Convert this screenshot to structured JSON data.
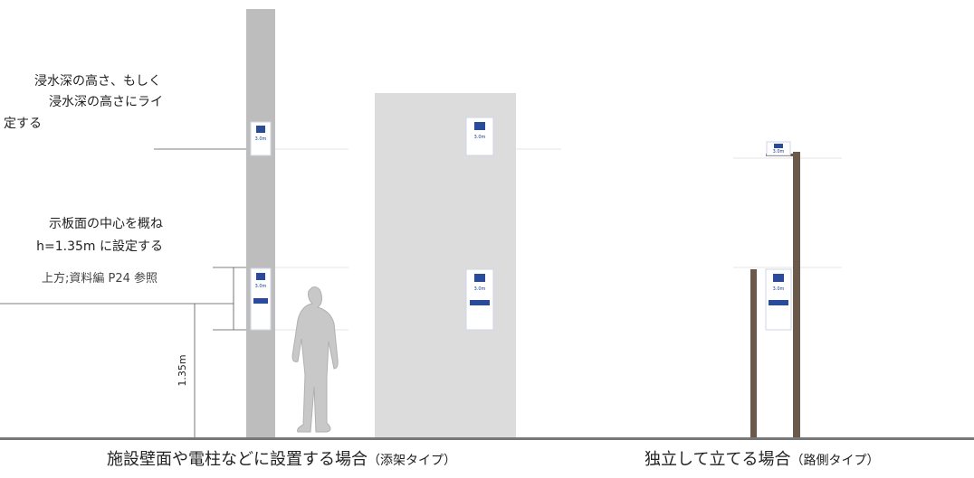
{
  "note_top": [
    "浸水深の高さ、もしく",
    "浸水深の高さにライ",
    "定する"
  ],
  "note_middle": [
    "示板面の中心を概ね",
    "h=1.35m に設定する",
    "上方;資料編 P24 参照"
  ],
  "dimension_label": "1.35m",
  "sign_label": "3.0m",
  "captions": [
    {
      "main": "施設壁面や電柱などに設置する場合",
      "sub": "（添架タイプ）"
    },
    {
      "main": "独立して立てる場合",
      "sub": "（路側タイプ）"
    }
  ]
}
